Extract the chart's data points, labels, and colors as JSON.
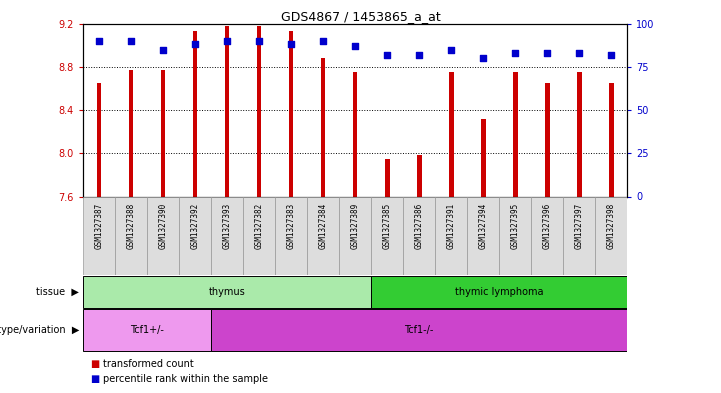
{
  "title": "GDS4867 / 1453865_a_at",
  "samples": [
    "GSM1327387",
    "GSM1327388",
    "GSM1327390",
    "GSM1327392",
    "GSM1327393",
    "GSM1327382",
    "GSM1327383",
    "GSM1327384",
    "GSM1327389",
    "GSM1327385",
    "GSM1327386",
    "GSM1327391",
    "GSM1327394",
    "GSM1327395",
    "GSM1327396",
    "GSM1327397",
    "GSM1327398"
  ],
  "transformed_count": [
    8.65,
    8.77,
    8.77,
    9.13,
    9.18,
    9.18,
    9.13,
    8.88,
    8.75,
    7.95,
    7.98,
    8.75,
    8.32,
    8.75,
    8.65,
    8.75,
    8.65
  ],
  "percentile_rank": [
    90,
    90,
    85,
    88,
    90,
    90,
    88,
    90,
    87,
    82,
    82,
    85,
    80,
    83,
    83,
    83,
    82
  ],
  "ylim_left": [
    7.6,
    9.2
  ],
  "ylim_right": [
    0,
    100
  ],
  "yticks_left": [
    7.6,
    8.0,
    8.4,
    8.8,
    9.2
  ],
  "yticks_right": [
    0,
    25,
    50,
    75,
    100
  ],
  "bar_color": "#cc0000",
  "dot_color": "#0000cc",
  "tissue_groups": [
    {
      "label": "thymus",
      "start": 0,
      "end": 8,
      "color": "#aaeaaa"
    },
    {
      "label": "thymic lymphoma",
      "start": 9,
      "end": 16,
      "color": "#33cc33"
    }
  ],
  "genotype_groups": [
    {
      "label": "Tcf1+/-",
      "start": 0,
      "end": 3,
      "color": "#ee99ee"
    },
    {
      "label": "Tcf1-/-",
      "start": 4,
      "end": 16,
      "color": "#cc44cc"
    }
  ],
  "background_color": "#ffffff",
  "plot_bg_color": "#ffffff",
  "tick_color_left": "#cc0000",
  "tick_color_right": "#0000cc",
  "bar_width": 0.15,
  "ybase": 7.6,
  "cell_bg": "#dddddd",
  "cell_border": "#999999"
}
